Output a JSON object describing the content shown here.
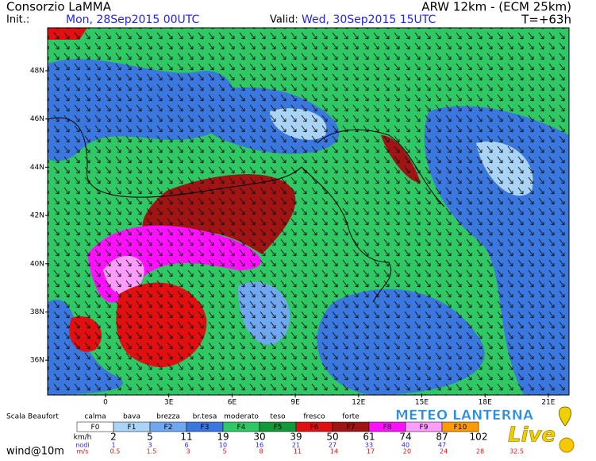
{
  "header": {
    "title": "Consorzio LaMMA",
    "init_label": "Init.:",
    "init": "Mon, 28Sep2015 00UTC",
    "valid_label": "Valid:",
    "valid": "Wed, 30Sep2015 15UTC",
    "model": "ARW 12km - (ECM 25km)",
    "step": "T=+63h"
  },
  "map": {
    "lat_labels": [
      "48N",
      "46N",
      "44N",
      "42N",
      "40N",
      "38N",
      "36N"
    ],
    "lon_labels": [
      "0",
      "3E",
      "6E",
      "9E",
      "12E",
      "15E",
      "18E",
      "21E"
    ]
  },
  "legend": {
    "title": "Scala Beaufort",
    "names": [
      "calma",
      "bava",
      "brezza",
      "br.tesa",
      "moderato",
      "teso",
      "fresco",
      "forte"
    ],
    "codes": [
      "F0",
      "F1",
      "F2",
      "F3",
      "F4",
      "F5",
      "F6",
      "F7",
      "F8",
      "F9",
      "F10"
    ],
    "colors": [
      "#ffffff",
      "#a9d4f5",
      "#6fa8f0",
      "#3a78e0",
      "#2fc864",
      "#129a3a",
      "#e01010",
      "#a01414",
      "#ff10ff",
      "#ff9cff",
      "#ff9a00"
    ],
    "unit_kmh": "km/h",
    "kmh": [
      "2",
      "5",
      "11",
      "19",
      "30",
      "39",
      "50",
      "61",
      "74",
      "87",
      "102"
    ],
    "unit_knots": "nodi",
    "knots": [
      "1",
      "3",
      "6",
      "10",
      "16",
      "21",
      "27",
      "33",
      "40",
      "47"
    ],
    "unit_ms": "m/s",
    "ms": [
      "0.5",
      "1.5",
      "3",
      "5",
      "8",
      "11",
      "14",
      "17",
      "20",
      "24",
      "28",
      "32.5"
    ]
  },
  "footer": "wind@10m",
  "logo": {
    "name": "METEO LANTERNA",
    "tag": "Live"
  }
}
